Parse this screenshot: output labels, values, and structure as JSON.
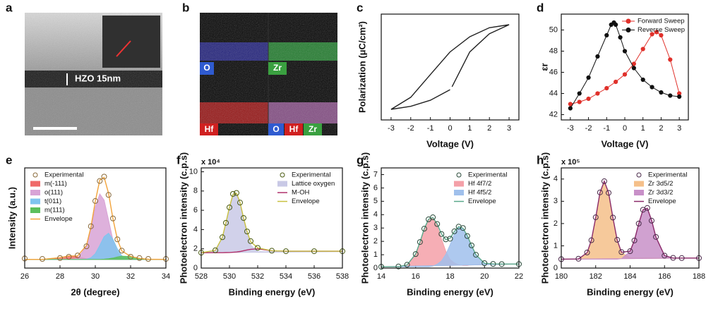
{
  "images": [
    {
      "panel": "a",
      "annotation": "HZO 15nm"
    },
    {
      "panel": "b",
      "maps": [
        "O",
        "Zr",
        "Hf",
        "O",
        "Hf",
        "Zr"
      ]
    }
  ],
  "chart_data": [
    {
      "type": "line",
      "panel": "c",
      "xlabel": "Voltage (V)",
      "ylabel": "Polarization (μC/cm²)",
      "xlim": [
        -3.5,
        3.5
      ],
      "xticks": [
        -3,
        -2,
        -1,
        0,
        1,
        2,
        3
      ],
      "ylim": [
        -35,
        35
      ],
      "x": [
        -3,
        -2,
        -1,
        0,
        1,
        2,
        3,
        2,
        1,
        0.1,
        null,
        0,
        -1,
        -2,
        -3
      ],
      "series": [
        {
          "color": "#222222",
          "style": "line",
          "values": [
            -28,
            -20,
            -5,
            10,
            20,
            26,
            28,
            22,
            10,
            -13,
            null,
            -15,
            -22,
            -26,
            -28
          ]
        }
      ]
    },
    {
      "type": "line",
      "panel": "d",
      "xlabel": "Voltage (V)",
      "ylabel": "εr",
      "xlim": [
        -3.5,
        3.5
      ],
      "xticks": [
        -3,
        -2,
        -1,
        0,
        1,
        2,
        3
      ],
      "ylim": [
        41.5,
        51.5
      ],
      "yticks": [
        42,
        44,
        46,
        48,
        50
      ],
      "legend": "upper right",
      "series": [
        {
          "name": "Forward Sweep",
          "color": "#e0302a",
          "style": "marker-line",
          "x": [
            -3,
            -2.5,
            -2,
            -1.5,
            -1,
            -0.5,
            0,
            0.5,
            1,
            1.5,
            1.75,
            2,
            2.5,
            3
          ],
          "values": [
            43,
            43.2,
            43.5,
            44,
            44.5,
            45.1,
            45.8,
            46.8,
            48.2,
            49.6,
            49.8,
            49.5,
            47.2,
            44
          ]
        },
        {
          "name": "Reverse Sweep",
          "color": "#111111",
          "style": "marker-line",
          "x": [
            3,
            2.5,
            2,
            1.5,
            1,
            0.5,
            0,
            -0.25,
            -0.5,
            -0.6,
            -0.75,
            -1,
            -1.5,
            -2,
            -2.5,
            -3
          ],
          "values": [
            43.7,
            43.8,
            44.1,
            44.6,
            45.3,
            46.4,
            48,
            49.3,
            50.5,
            50.7,
            50.5,
            49.5,
            47.5,
            45.5,
            44,
            42.6
          ]
        }
      ]
    },
    {
      "type": "line",
      "panel": "e",
      "xlabel": "2θ (degree)",
      "ylabel": "Intensity (a.u.)",
      "xlim": [
        26,
        34
      ],
      "xticks": [
        26,
        28,
        30,
        32,
        34
      ],
      "ylim": [
        0,
        115
      ],
      "legend": "upper left",
      "x": [
        26,
        27,
        28,
        28.5,
        29,
        29.5,
        29.75,
        30,
        30.25,
        30.5,
        30.75,
        31,
        31.25,
        31.5,
        32,
        32.5,
        33,
        34
      ],
      "series": [
        {
          "name": "Experimental",
          "color": "#8a6a3a",
          "style": "marker",
          "values": [
            11,
            10.5,
            11.5,
            13,
            14.5,
            25,
            48,
            77,
            100,
            105,
            84,
            57,
            33,
            20,
            13,
            11.5,
            10.5,
            10.5
          ]
        },
        {
          "name": "m(-111)",
          "color": "#ef6a6a",
          "style": "fill",
          "values": [
            10,
            10,
            12,
            13.9,
            12.9,
            10.8,
            10.3,
            10.1,
            10,
            10,
            10,
            10,
            10,
            10,
            10,
            10,
            10,
            10
          ]
        },
        {
          "name": "o(111)",
          "color": "#d8a3d6",
          "style": "fill",
          "values": [
            10,
            10,
            10,
            10,
            11.1,
            25,
            45,
            70,
            85,
            78,
            55,
            32,
            18,
            12,
            10,
            10,
            10,
            10
          ]
        },
        {
          "name": "t(011)",
          "color": "#7fc4ef",
          "style": "fill",
          "values": [
            10,
            10,
            10,
            10,
            10,
            10.3,
            11.8,
            16.5,
            26,
            36,
            40,
            33,
            22,
            14,
            10.2,
            10,
            10,
            10
          ]
        },
        {
          "name": "m(111)",
          "color": "#5cbf5c",
          "style": "fill",
          "values": [
            10,
            10,
            10,
            10,
            10,
            10,
            10,
            10,
            10,
            10.2,
            10.7,
            11.5,
            12.7,
            13.7,
            13.3,
            11.1,
            10.1,
            10
          ]
        },
        {
          "name": "Envelope",
          "color": "#f2a33a",
          "style": "line",
          "values": [
            10,
            10,
            12,
            13.9,
            14,
            26.1,
            47.1,
            76.6,
            101,
            104.2,
            85.7,
            56.5,
            32.7,
            19.7,
            13.5,
            11.1,
            10.1,
            10
          ]
        }
      ]
    },
    {
      "type": "line",
      "panel": "f",
      "xlabel": "Binding energy (eV)",
      "ylabel": "Photoelectron intensity (c.p.s)",
      "y_multiplier": "x 10⁴",
      "xlim": [
        528,
        538
      ],
      "xticks": [
        528,
        530,
        532,
        534,
        536,
        538
      ],
      "ylim": [
        0,
        10.4
      ],
      "yticks": [
        0,
        2,
        4,
        6,
        8,
        10
      ],
      "legend": "upper right",
      "x": [
        528,
        529,
        529.5,
        529.75,
        530,
        530.25,
        530.5,
        530.75,
        531,
        531.25,
        531.5,
        532,
        533,
        534,
        536,
        538
      ],
      "series": [
        {
          "name": "Experimental",
          "color": "#4a5a10",
          "style": "marker",
          "values": [
            1.6,
            1.85,
            3.2,
            4.7,
            6.3,
            7.7,
            7.8,
            6.8,
            5.2,
            3.8,
            2.8,
            2.1,
            1.8,
            1.75,
            1.75,
            1.75
          ]
        },
        {
          "name": "Lattice oxygen",
          "color": "#c9c9e6",
          "style": "fill",
          "values": [
            1.6,
            1.84,
            3.2,
            4.7,
            6.3,
            7.6,
            7.7,
            6.7,
            5,
            3.5,
            2.4,
            1.7,
            1.7,
            1.7,
            1.7,
            1.7
          ]
        },
        {
          "name": "M-OH",
          "color": "#b0306a",
          "style": "line",
          "values": [
            1.6,
            1.6,
            1.6,
            1.61,
            1.62,
            1.64,
            1.67,
            1.72,
            1.8,
            1.88,
            1.95,
            2,
            1.8,
            1.75,
            1.75,
            1.75
          ]
        },
        {
          "name": "Envelope",
          "color": "#c8c040",
          "style": "line",
          "values": [
            1.6,
            1.84,
            3.2,
            4.71,
            6.32,
            7.64,
            7.77,
            6.82,
            5.2,
            3.78,
            2.75,
            2.1,
            1.8,
            1.75,
            1.75,
            1.75
          ]
        }
      ]
    },
    {
      "type": "line",
      "panel": "g",
      "xlabel": "Binding energy (eV)",
      "ylabel": "Photoelectron intensity (c.p.s)",
      "xlim": [
        14,
        22
      ],
      "xticks": [
        14,
        16,
        18,
        20,
        22
      ],
      "ylim": [
        0,
        7.5
      ],
      "yticks": [
        0,
        1,
        2,
        3,
        4,
        5,
        6,
        7
      ],
      "legend": "upper right",
      "x": [
        14,
        15,
        15.5,
        16,
        16.25,
        16.5,
        16.75,
        17,
        17.25,
        17.5,
        17.75,
        18,
        18.25,
        18.5,
        18.75,
        19,
        19.25,
        19.5,
        20,
        20.5,
        21,
        22
      ],
      "series": [
        {
          "name": "Experimental",
          "color": "#2a4a3a",
          "style": "marker",
          "values": [
            0.1,
            0.12,
            0.25,
            1.05,
            1.95,
            2.95,
            3.65,
            3.8,
            3.3,
            2.55,
            2.15,
            2.2,
            2.75,
            3.1,
            3,
            2.4,
            1.7,
            1,
            0.37,
            0.31,
            0.3,
            0.3
          ]
        },
        {
          "name": "Hf 4f7/2",
          "color": "#f4a0a8",
          "style": "fill",
          "values": [
            0.1,
            0.11,
            0.24,
            1.06,
            1.94,
            2.94,
            3.66,
            3.74,
            3.17,
            2.18,
            1.26,
            0.64,
            0.38,
            0.25,
            0.2,
            0.2,
            0.25,
            0.25,
            0.25,
            0.3,
            0.3,
            0.3
          ]
        },
        {
          "name": "Hf 4f5/2",
          "color": "#a0c0ec",
          "style": "fill",
          "values": [
            0.1,
            0.1,
            0.1,
            0.1,
            0.1,
            0.1,
            0.1,
            0.14,
            0.29,
            0.53,
            1.02,
            1.74,
            2.56,
            3.05,
            2.99,
            2.42,
            1.68,
            1,
            0.36,
            0.31,
            0.3,
            0.3
          ]
        },
        {
          "name": "Envelope",
          "color": "#5aa88a",
          "style": "line",
          "values": [
            0.1,
            0.11,
            0.24,
            1.06,
            1.94,
            2.94,
            3.66,
            3.78,
            3.31,
            2.56,
            2.13,
            2.23,
            2.74,
            3.1,
            2.99,
            2.42,
            1.68,
            1,
            0.36,
            0.31,
            0.3,
            0.3
          ]
        }
      ]
    },
    {
      "type": "line",
      "panel": "h",
      "xlabel": "Binding energy (eV)",
      "ylabel": "Photoelectron intensity (c.p.s)",
      "y_multiplier": "x 10⁵",
      "xlim": [
        180,
        188
      ],
      "xticks": [
        180,
        182,
        184,
        186,
        188
      ],
      "ylim": [
        0,
        4.5
      ],
      "yticks": [
        0,
        1,
        2,
        3,
        4
      ],
      "legend": "upper right",
      "x": [
        180,
        181,
        181.5,
        181.75,
        182,
        182.25,
        182.5,
        182.75,
        183,
        183.25,
        183.5,
        184,
        184.25,
        184.5,
        184.75,
        185,
        185.25,
        185.5,
        186,
        186.5,
        187,
        188
      ],
      "series": [
        {
          "name": "Experimental",
          "color": "#4a2a4a",
          "style": "marker",
          "values": [
            0.4,
            0.42,
            0.7,
            1.25,
            2.28,
            3.4,
            3.9,
            3.38,
            2.27,
            1.27,
            0.72,
            0.76,
            1.24,
            2,
            2.62,
            2.7,
            2.13,
            1.4,
            0.56,
            0.46,
            0.45,
            0.45
          ]
        },
        {
          "name": "Zr 3d5/2",
          "color": "#f5c08a",
          "style": "fill",
          "values": [
            0.4,
            0.41,
            0.69,
            1.26,
            2.27,
            3.39,
            3.9,
            3.39,
            2.27,
            1.26,
            0.69,
            0.46,
            0.45,
            0.45,
            0.45,
            0.45,
            0.45,
            0.45,
            0.45,
            0.45,
            0.45,
            0.45
          ]
        },
        {
          "name": "Zr 3d3/2",
          "color": "#c890c8",
          "style": "fill",
          "values": [
            0.4,
            0.4,
            0.4,
            0.4,
            0.4,
            0.4,
            0.4,
            0.4,
            0.4,
            0.4,
            0.42,
            0.75,
            1.25,
            1.99,
            2.62,
            2.69,
            2.14,
            1.39,
            0.56,
            0.45,
            0.45,
            0.45
          ]
        },
        {
          "name": "Envelope",
          "color": "#8a2a6a",
          "style": "line",
          "values": [
            0.4,
            0.41,
            0.69,
            1.26,
            2.27,
            3.39,
            3.9,
            3.39,
            2.27,
            1.26,
            0.71,
            0.76,
            1.25,
            1.99,
            2.62,
            2.69,
            2.14,
            1.39,
            0.56,
            0.45,
            0.45,
            0.45
          ]
        }
      ]
    }
  ]
}
